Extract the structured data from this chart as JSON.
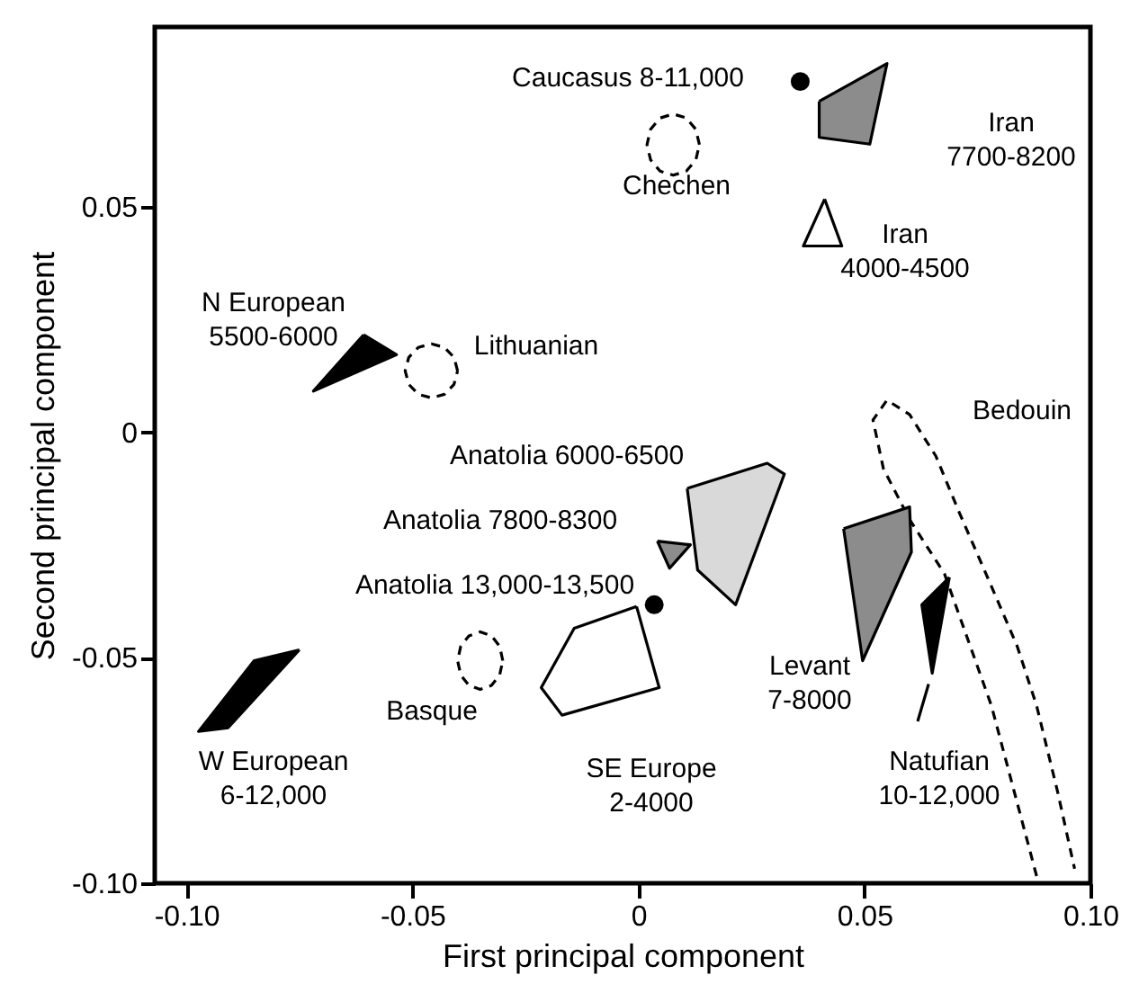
{
  "chart_data": {
    "type": "scatter",
    "xlabel": "First principal component",
    "ylabel": "Second principal component",
    "xlim": [
      -0.107,
      0.1
    ],
    "ylim": [
      -0.1,
      0.09
    ],
    "xticks": [
      {
        "value": -0.1,
        "label": "-0.10"
      },
      -0.05,
      0,
      0.05,
      {
        "value": 0.1,
        "label": "0.10"
      }
    ],
    "yticks": [
      {
        "value": -0.1,
        "label": "-0.10"
      },
      -0.05,
      0,
      0.05
    ],
    "grid": false,
    "series": [
      {
        "name": "Caucasus 8-11,000",
        "type": "scatter",
        "marker": "circle",
        "color": "#000000",
        "x": [
          0.0358
        ],
        "values": [
          0.0779
        ]
      },
      {
        "name": "Anatolia 13,000-13,500",
        "type": "scatter",
        "marker": "circle",
        "color": "#000000",
        "x": [
          0.0035
        ],
        "values": [
          -0.0382
        ]
      },
      {
        "name": "Iran\n7700-8200",
        "type": "area",
        "color": "#8c8c8c",
        "x": [
          0.04,
          0.055,
          0.0512,
          0.04,
          0.04
        ],
        "values": [
          0.0735,
          0.0819,
          0.064,
          0.0655,
          0.0735
        ]
      },
      {
        "name": "Chechen",
        "type": "area",
        "line_style": "dashed",
        "color": "#ffffff",
        "x": [
          0.0135,
          0.0127,
          0.0106,
          0.0077,
          0.0048,
          0.0027,
          0.0019,
          0.0027,
          0.0048,
          0.0077,
          0.0106,
          0.0127,
          0.0135
        ],
        "values": [
          0.0639,
          0.0673,
          0.0698,
          0.0707,
          0.0698,
          0.0673,
          0.0639,
          0.0605,
          0.058,
          0.0571,
          0.058,
          0.0605,
          0.0639
        ]
      },
      {
        "name": "Iran\n4000-4500",
        "type": "area",
        "color": "#ffffff",
        "x": [
          0.0412,
          0.0365,
          0.045,
          0.0412
        ],
        "values": [
          0.0518,
          0.0414,
          0.0414,
          0.0518
        ]
      },
      {
        "name": "N European\n5500-6000",
        "type": "area",
        "color": "#000000",
        "x": [
          -0.0608,
          -0.0535,
          -0.0719,
          -0.0608
        ],
        "values": [
          0.0217,
          0.0173,
          0.0092,
          0.0217
        ]
      },
      {
        "name": "Lithuanian",
        "type": "area",
        "line_style": "dashed",
        "color": "#ffffff",
        "x": [
          -0.04,
          -0.0408,
          -0.0429,
          -0.0458,
          -0.0487,
          -0.0508,
          -0.0516,
          -0.0508,
          -0.0487,
          -0.0458,
          -0.0429,
          -0.0408,
          -0.04
        ],
        "values": [
          0.0137,
          0.0167,
          0.0189,
          0.0197,
          0.0189,
          0.0167,
          0.0137,
          0.0107,
          0.0085,
          0.0077,
          0.0085,
          0.0107,
          0.0137
        ]
      },
      {
        "name": "Bedouin",
        "type": "area",
        "line_style": "dashed",
        "color": "#ffffff",
        "x": [
          0.0881,
          0.0781,
          0.0677,
          0.06,
          0.0542,
          0.0519,
          0.055,
          0.06,
          0.0658,
          0.0708,
          0.0781,
          0.0838,
          0.0881,
          0.0927,
          0.0965
        ],
        "values": [
          -0.0984,
          -0.0606,
          -0.0313,
          -0.0193,
          -0.008,
          0.0028,
          0.0072,
          0.004,
          -0.0052,
          -0.0173,
          -0.0341,
          -0.0474,
          -0.0606,
          -0.0795,
          -0.0968
        ]
      },
      {
        "name": "Anatolia 6000-6500",
        "type": "area",
        "color": "#d9d9d9",
        "x": [
          0.0108,
          0.0285,
          0.0323,
          0.0215,
          0.0131,
          0.0108
        ],
        "values": [
          -0.0124,
          -0.0068,
          -0.0092,
          -0.0382,
          -0.0305,
          -0.0124
        ]
      },
      {
        "name": "Anatolia 7800-8300",
        "type": "area",
        "color": "#8c8c8c",
        "x": [
          0.0042,
          0.0115,
          0.0069,
          0.0042
        ],
        "values": [
          -0.0241,
          -0.0249,
          -0.0301,
          -0.0241
        ]
      },
      {
        "name": "SE Europe\n2-4000",
        "type": "area",
        "color": "#ffffff",
        "x": [
          -0.0004,
          0.0046,
          -0.0169,
          -0.0215,
          -0.0142,
          -0.0004
        ],
        "values": [
          -0.0386,
          -0.0566,
          -0.0627,
          -0.0566,
          -0.0434,
          -0.0386
        ]
      },
      {
        "name": "Levant\n7-8000",
        "type": "area",
        "color": "#8c8c8c",
        "x": [
          0.0454,
          0.06,
          0.0604,
          0.0496,
          0.0454
        ],
        "values": [
          -0.0213,
          -0.0165,
          -0.0265,
          -0.0506,
          -0.0213
        ]
      },
      {
        "name": "Natufian\n10-12,000",
        "type": "area",
        "color": "#000000",
        "x": [
          0.0688,
          0.0627,
          0.065,
          0.0688
        ],
        "values": [
          -0.0321,
          -0.0382,
          -0.0534,
          -0.0321
        ]
      },
      {
        "name": "Basque",
        "type": "area",
        "line_style": "dashed",
        "color": "#ffffff",
        "x": [
          -0.03,
          -0.0307,
          -0.0325,
          -0.035,
          -0.0375,
          -0.0393,
          -0.04,
          -0.0393,
          -0.0375,
          -0.035,
          -0.0325,
          -0.0307,
          -0.03
        ],
        "values": [
          -0.0506,
          -0.0474,
          -0.0451,
          -0.0442,
          -0.0451,
          -0.0474,
          -0.0506,
          -0.0538,
          -0.0561,
          -0.057,
          -0.0561,
          -0.0538,
          -0.0506
        ]
      },
      {
        "name": "W European\n6-12,000",
        "type": "area",
        "color": "#000000",
        "x": [
          -0.075,
          -0.085,
          -0.0973,
          -0.0908,
          -0.075
        ],
        "values": [
          -0.0482,
          -0.0506,
          -0.0663,
          -0.0655,
          -0.0482
        ]
      }
    ]
  }
}
